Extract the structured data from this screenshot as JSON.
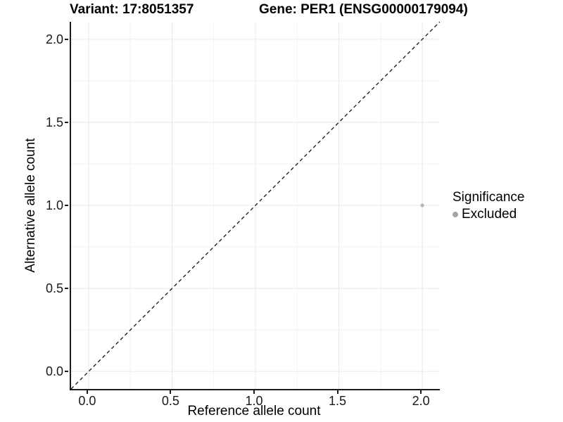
{
  "header": {
    "variant_title": "Variant: 17:8051357",
    "gene_title": "Gene: PER1 (ENSG00000179094)"
  },
  "chart_data": {
    "type": "scatter",
    "title_left": "Variant: 17:8051357",
    "title_right": "Gene: PER1 (ENSG00000179094)",
    "xlabel": "Reference allele count",
    "ylabel": "Alternative allele count",
    "xlim": [
      -0.105,
      2.105
    ],
    "ylim": [
      -0.105,
      2.105
    ],
    "x_ticks": [
      0,
      0.5,
      1,
      1.5,
      2
    ],
    "x_tick_labels": [
      "0.0",
      "0.5",
      "1.0",
      "1.5",
      "2.0"
    ],
    "y_ticks": [
      0,
      0.5,
      1,
      1.5,
      2
    ],
    "y_tick_labels": [
      "0.0",
      "0.5",
      "1.0",
      "1.5",
      "2.0"
    ],
    "x_minor_ticks": [
      0.25,
      0.75,
      1.25,
      1.75
    ],
    "y_minor_ticks": [
      0.25,
      0.75,
      1.25,
      1.75
    ],
    "grid": "major+minor",
    "legend_position": "right",
    "series": [
      {
        "name": "Excluded",
        "color": "#b6b6b6",
        "point_radius": 2.6,
        "points": [
          {
            "x": 2.0,
            "y": 1.0
          }
        ]
      }
    ],
    "reference_line": {
      "kind": "identity y=x",
      "style": "dashed",
      "color": "#141414",
      "x1": -0.105,
      "y1": -0.105,
      "x2": 2.105,
      "y2": 2.105
    },
    "legend": {
      "title": "Significance",
      "entries": [
        {
          "label": "Excluded",
          "color": "#a5a5a5"
        }
      ]
    }
  },
  "colors": {
    "background": "#ffffff",
    "axis_line": "#1a1a1a",
    "tick_text": "#1a1a1a",
    "grid_major": "#e8e8e8",
    "grid_minor": "#f2f2f2"
  }
}
